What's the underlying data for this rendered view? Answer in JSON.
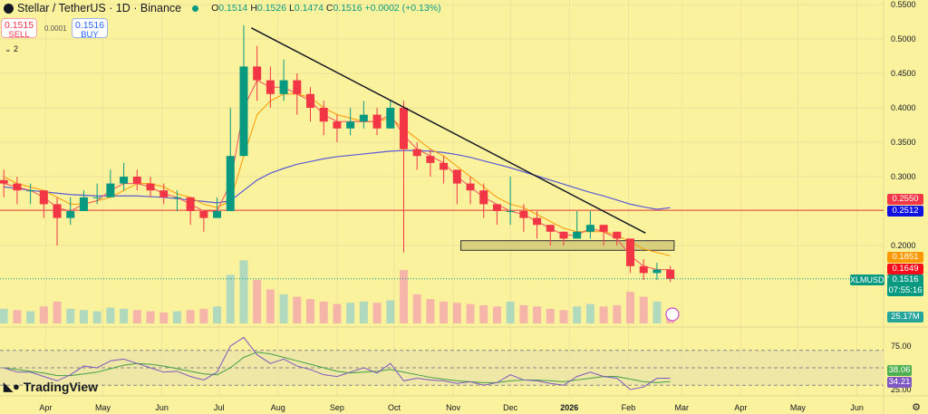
{
  "header": {
    "symbol_title": "Stellar / TetherUS · 1D · Binance",
    "open_label": "O",
    "open": "0.1514",
    "high_label": "H",
    "high": "0.1526",
    "low_label": "L",
    "low": "0.1474",
    "close_label": "C",
    "close": "0.1516",
    "change": "+0.0002 (+0.13%)"
  },
  "trade": {
    "sell_price": "0.1515",
    "sell_label": "SELL",
    "spread": "0.0001",
    "buy_price": "0.1516",
    "buy_label": "BUY"
  },
  "indicators_toggle": "2",
  "tags": {
    "ma_blue_top": "0.2550",
    "hline": "0.2512",
    "ma_orange": "0.1851",
    "ma_red": "0.1649",
    "symbol": "XLMUSDT",
    "last": "0.1516",
    "countdown": "07:55:16",
    "volume": "25.17M",
    "rsi": "38.06",
    "rsi_ma": "34.21"
  },
  "branding": "TradingView",
  "colors": {
    "background": "#fbf29e",
    "up": "#089981",
    "down": "#f23645",
    "ma_fast": "#f7525f",
    "ma_mid": "#ff9800",
    "ma_slow": "#5b5bd6",
    "hline": "#e53935",
    "trendline": "#131722",
    "box": "#d7cf7e",
    "rsi": "#7e57c2",
    "rsi_ma": "#43a047"
  },
  "chart_data": {
    "type": "candlestick",
    "title": "Stellar / TetherUS · 1D · Binance",
    "y_ticks": [
      "0.5500",
      "0.5000",
      "0.4500",
      "0.4000",
      "0.3500",
      "0.3000",
      "0.2000"
    ],
    "ylim": [
      0.14,
      0.55
    ],
    "x_ticks": [
      "Apr",
      "May",
      "Jun",
      "Jul",
      "Aug",
      "Sep",
      "Oct",
      "Nov",
      "Dec",
      "2026",
      "Feb",
      "Mar",
      "Apr",
      "May",
      "Jun"
    ],
    "x_tick_dates": [
      "2025-04-01",
      "2025-05-01",
      "2025-06-01",
      "2025-07-01",
      "2025-08-01",
      "2025-09-01",
      "2025-10-01",
      "2025-11-01",
      "2025-12-01",
      "2026-01-01",
      "2026-02-01",
      "2026-03-01",
      "2026-04-01",
      "2026-05-01",
      "2026-06-01"
    ],
    "xlim": [
      "2025-03-08",
      "2026-06-15"
    ],
    "dates": [
      "2025-03-10",
      "2025-03-17",
      "2025-03-24",
      "2025-03-31",
      "2025-04-07",
      "2025-04-14",
      "2025-04-21",
      "2025-04-28",
      "2025-05-05",
      "2025-05-12",
      "2025-05-19",
      "2025-05-26",
      "2025-06-02",
      "2025-06-09",
      "2025-06-16",
      "2025-06-23",
      "2025-06-30",
      "2025-07-07",
      "2025-07-14",
      "2025-07-21",
      "2025-07-28",
      "2025-08-04",
      "2025-08-11",
      "2025-08-18",
      "2025-08-25",
      "2025-09-01",
      "2025-09-08",
      "2025-09-15",
      "2025-09-22",
      "2025-09-29",
      "2025-10-06",
      "2025-10-13",
      "2025-10-20",
      "2025-10-27",
      "2025-11-03",
      "2025-11-10",
      "2025-11-17",
      "2025-11-24",
      "2025-12-01",
      "2025-12-08",
      "2025-12-15",
      "2025-12-22",
      "2025-12-29",
      "2026-01-05",
      "2026-01-12",
      "2026-01-19",
      "2026-01-26",
      "2026-02-02",
      "2026-02-09",
      "2026-02-16",
      "2026-02-23"
    ],
    "close": [
      0.29,
      0.28,
      0.28,
      0.26,
      0.24,
      0.25,
      0.27,
      0.27,
      0.29,
      0.3,
      0.29,
      0.28,
      0.27,
      0.27,
      0.25,
      0.24,
      0.25,
      0.33,
      0.46,
      0.44,
      0.42,
      0.44,
      0.42,
      0.4,
      0.38,
      0.37,
      0.38,
      0.39,
      0.37,
      0.4,
      0.34,
      0.33,
      0.32,
      0.31,
      0.29,
      0.28,
      0.26,
      0.25,
      0.25,
      0.24,
      0.23,
      0.22,
      0.21,
      0.22,
      0.23,
      0.22,
      0.21,
      0.17,
      0.16,
      0.165,
      0.1516
    ],
    "high": [
      0.31,
      0.3,
      0.29,
      0.28,
      0.27,
      0.27,
      0.28,
      0.29,
      0.31,
      0.32,
      0.31,
      0.3,
      0.29,
      0.28,
      0.27,
      0.25,
      0.27,
      0.4,
      0.52,
      0.49,
      0.46,
      0.47,
      0.45,
      0.43,
      0.41,
      0.39,
      0.4,
      0.41,
      0.4,
      0.41,
      0.41,
      0.35,
      0.34,
      0.33,
      0.31,
      0.3,
      0.29,
      0.26,
      0.3,
      0.26,
      0.25,
      0.23,
      0.22,
      0.25,
      0.25,
      0.23,
      0.22,
      0.21,
      0.18,
      0.175,
      0.17
    ],
    "low": [
      0.27,
      0.26,
      0.26,
      0.24,
      0.2,
      0.23,
      0.25,
      0.26,
      0.27,
      0.28,
      0.28,
      0.27,
      0.26,
      0.25,
      0.23,
      0.22,
      0.24,
      0.25,
      0.33,
      0.41,
      0.4,
      0.41,
      0.39,
      0.38,
      0.36,
      0.35,
      0.36,
      0.37,
      0.36,
      0.37,
      0.19,
      0.31,
      0.3,
      0.29,
      0.26,
      0.26,
      0.24,
      0.23,
      0.23,
      0.22,
      0.21,
      0.2,
      0.2,
      0.21,
      0.21,
      0.2,
      0.2,
      0.16,
      0.15,
      0.15,
      0.147
    ],
    "ma_fast": [
      0.29,
      0.285,
      0.28,
      0.27,
      0.255,
      0.25,
      0.26,
      0.265,
      0.28,
      0.29,
      0.29,
      0.285,
      0.275,
      0.27,
      0.26,
      0.25,
      0.25,
      0.29,
      0.4,
      0.44,
      0.43,
      0.43,
      0.42,
      0.41,
      0.39,
      0.38,
      0.38,
      0.38,
      0.38,
      0.39,
      0.36,
      0.34,
      0.33,
      0.32,
      0.3,
      0.285,
      0.27,
      0.26,
      0.25,
      0.245,
      0.235,
      0.225,
      0.215,
      0.215,
      0.225,
      0.22,
      0.21,
      0.185,
      0.17,
      0.165,
      0.1649
    ],
    "ma_mid": [
      0.3,
      0.29,
      0.285,
      0.28,
      0.27,
      0.26,
      0.26,
      0.265,
      0.27,
      0.28,
      0.29,
      0.29,
      0.285,
      0.275,
      0.27,
      0.26,
      0.255,
      0.265,
      0.33,
      0.39,
      0.41,
      0.42,
      0.42,
      0.415,
      0.4,
      0.39,
      0.385,
      0.38,
      0.38,
      0.385,
      0.37,
      0.355,
      0.34,
      0.33,
      0.315,
      0.3,
      0.285,
      0.27,
      0.26,
      0.255,
      0.245,
      0.235,
      0.225,
      0.22,
      0.22,
      0.22,
      0.215,
      0.205,
      0.195,
      0.19,
      0.1851
    ],
    "ma_slow": [
      0.285,
      0.283,
      0.28,
      0.278,
      0.276,
      0.274,
      0.273,
      0.272,
      0.272,
      0.272,
      0.272,
      0.271,
      0.27,
      0.268,
      0.266,
      0.264,
      0.262,
      0.265,
      0.28,
      0.295,
      0.305,
      0.312,
      0.318,
      0.322,
      0.326,
      0.329,
      0.331,
      0.333,
      0.335,
      0.337,
      0.338,
      0.338,
      0.337,
      0.335,
      0.332,
      0.328,
      0.323,
      0.318,
      0.313,
      0.307,
      0.301,
      0.295,
      0.289,
      0.283,
      0.277,
      0.272,
      0.266,
      0.26,
      0.256,
      0.2525,
      0.255
    ],
    "volume_millions": [
      60,
      55,
      50,
      70,
      90,
      60,
      55,
      50,
      65,
      60,
      55,
      50,
      45,
      50,
      55,
      60,
      70,
      200,
      260,
      180,
      140,
      120,
      110,
      100,
      90,
      80,
      85,
      90,
      85,
      95,
      220,
      120,
      100,
      90,
      85,
      80,
      75,
      70,
      90,
      75,
      70,
      60,
      55,
      70,
      80,
      70,
      75,
      130,
      110,
      90,
      25.17
    ],
    "rsi": [
      50,
      45,
      45,
      40,
      35,
      42,
      52,
      50,
      58,
      60,
      55,
      50,
      45,
      46,
      40,
      36,
      45,
      75,
      85,
      65,
      55,
      60,
      52,
      48,
      42,
      40,
      45,
      50,
      44,
      55,
      35,
      38,
      36,
      35,
      32,
      34,
      30,
      33,
      42,
      36,
      35,
      32,
      30,
      40,
      45,
      40,
      38,
      25,
      28,
      38,
      38.06
    ],
    "rsi_ma": [
      50,
      48,
      46,
      44,
      41,
      41,
      43,
      45,
      49,
      53,
      55,
      54,
      52,
      49,
      46,
      43,
      42,
      50,
      62,
      68,
      66,
      62,
      58,
      54,
      50,
      46,
      44,
      45,
      46,
      48,
      45,
      42,
      39,
      37,
      35,
      34,
      33,
      33,
      35,
      36,
      36,
      35,
      34,
      36,
      38,
      40,
      40,
      37,
      34,
      33,
      34.21
    ],
    "rsi_levels": {
      "upper": 70,
      "middle": 50,
      "lower": 30
    },
    "rsi_ticks": [
      "75.00",
      "25.00"
    ],
    "trendline": {
      "from": [
        "2025-07-18",
        0.516
      ],
      "to": [
        "2026-02-10",
        0.218
      ]
    },
    "horizontal_line": 0.2512,
    "support_box": {
      "from": "2025-11-05",
      "to": "2026-02-25",
      "top": 0.207,
      "bottom": 0.193
    }
  }
}
